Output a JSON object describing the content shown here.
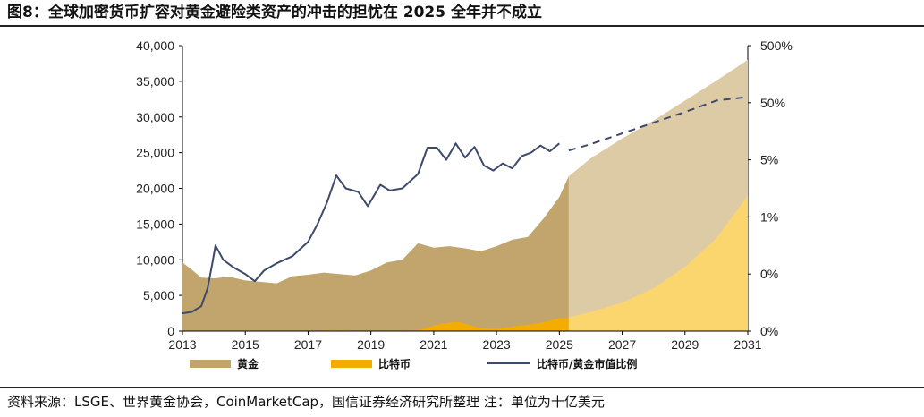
{
  "title": "图8：全球加密货币扩容对黄金避险类资产的冲击的担忧在 2025 全年并不成立",
  "source": "资料来源：LSGE、世界黄金协会，CoinMarketCap，国信证券经济研究所整理 注：单位为十亿美元",
  "chart_data": {
    "type": "area",
    "title": "",
    "xlabel": "",
    "ylabel": "",
    "xlim": [
      2013,
      2031
    ],
    "ylim": [
      0,
      40000
    ],
    "x_ticks": [
      "2013",
      "2015",
      "2017",
      "2019",
      "2021",
      "2023",
      "2025",
      "2027",
      "2029",
      "2031"
    ],
    "y_ticks": [
      "0",
      "5,000",
      "10,000",
      "15,000",
      "20,000",
      "25,000",
      "30,000",
      "35,000",
      "40,000"
    ],
    "y2_ticks": [
      "0%",
      "0%",
      "1%",
      "5%",
      "50%",
      "500%"
    ],
    "legend": {
      "placement": "bottom",
      "entries": [
        "黄金",
        "比特币",
        "比特币/黄金市值比例"
      ]
    },
    "colors": {
      "gold": "#c2a56d",
      "gold_projection": "#ddcba6",
      "bitcoin": "#f2ad00",
      "bitcoin_projection": "#fbd56e",
      "ratio": "#3d4a6b"
    },
    "series": [
      {
        "name": "黄金",
        "kind": "area",
        "x": [
          2013.0,
          2013.3,
          2013.6,
          2014.0,
          2014.5,
          2015.0,
          2015.5,
          2016.0,
          2016.5,
          2017.0,
          2017.5,
          2018.0,
          2018.5,
          2019.0,
          2019.5,
          2020.0,
          2020.5,
          2021.0,
          2021.5,
          2022.0,
          2022.5,
          2023.0,
          2023.5,
          2024.0,
          2024.5,
          2025.0,
          2025.3
        ],
        "y": [
          9600,
          8600,
          7500,
          7400,
          7600,
          7100,
          6900,
          6700,
          7700,
          7900,
          8200,
          8000,
          7800,
          8500,
          9600,
          10000,
          12300,
          11700,
          11900,
          11600,
          11200,
          11900,
          12800,
          13200,
          15800,
          18800,
          21700
        ]
      },
      {
        "name": "黄金（预测）",
        "kind": "area",
        "x": [
          2025.3,
          2026,
          2027,
          2028,
          2029,
          2030,
          2031
        ],
        "y": [
          21700,
          24200,
          27000,
          29500,
          32300,
          35100,
          38000
        ]
      },
      {
        "name": "比特币",
        "kind": "area",
        "x": [
          2013.0,
          2016.5,
          2017.0,
          2018.0,
          2019.0,
          2020.5,
          2021.0,
          2021.3,
          2021.8,
          2022.5,
          2023.0,
          2024.0,
          2024.5,
          2025.0,
          2025.3
        ],
        "y": [
          0,
          0,
          20,
          150,
          50,
          100,
          800,
          1100,
          1300,
          400,
          350,
          900,
          1250,
          1800,
          1900
        ]
      },
      {
        "name": "比特币（预测）",
        "kind": "area",
        "x": [
          2025.3,
          2026,
          2027,
          2028,
          2029,
          2030,
          2031
        ],
        "y": [
          1900,
          2700,
          4000,
          6000,
          9000,
          13000,
          19000
        ]
      },
      {
        "name": "比特币/黄金市值比例",
        "kind": "line",
        "x": [
          2013.0,
          2013.3,
          2013.6,
          2013.8,
          2013.95,
          2014.05,
          2014.3,
          2014.6,
          2015.0,
          2015.3,
          2015.6,
          2016.0,
          2016.5,
          2017.0,
          2017.3,
          2017.6,
          2017.9,
          2018.2,
          2018.6,
          2018.9,
          2019.3,
          2019.6,
          2020.0,
          2020.5,
          2020.8,
          2021.1,
          2021.4,
          2021.7,
          2022.0,
          2022.3,
          2022.6,
          2022.9,
          2023.2,
          2023.5,
          2023.8,
          2024.1,
          2024.4,
          2024.7,
          2025.0
        ],
        "y": [
          2500,
          2700,
          3500,
          6000,
          9500,
          12000,
          10000,
          9000,
          8000,
          7000,
          8500,
          9500,
          10500,
          12500,
          15000,
          18000,
          21800,
          20000,
          19500,
          17500,
          20500,
          19700,
          20000,
          22000,
          25700,
          25700,
          24000,
          26300,
          24300,
          25800,
          23200,
          22500,
          23500,
          22800,
          24500,
          25000,
          26000,
          25200,
          26300
        ]
      },
      {
        "name": "比特币/黄金市值比例（预测）",
        "kind": "line",
        "dashed": true,
        "x": [
          2025.3,
          2026,
          2027,
          2028,
          2029,
          2030,
          2031
        ],
        "y": [
          25300,
          26200,
          27700,
          29200,
          30700,
          32300,
          32800
        ]
      }
    ]
  }
}
